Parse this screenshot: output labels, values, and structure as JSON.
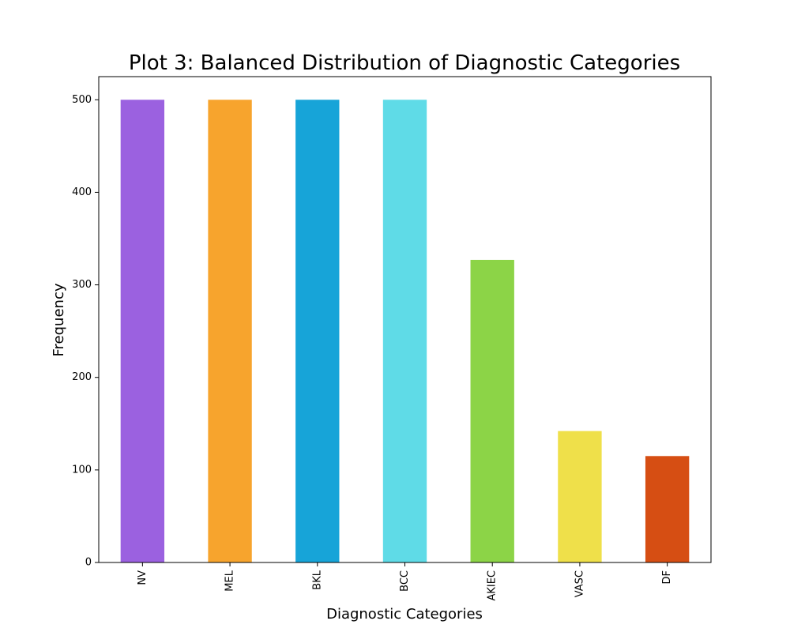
{
  "chart_data": {
    "type": "bar",
    "title": "Plot 3: Balanced Distribution of Diagnostic Categories",
    "xlabel": "Diagnostic Categories",
    "ylabel": "Frequency",
    "categories": [
      "NV",
      "MEL",
      "BKL",
      "BCC",
      "AKIEC",
      "VASC",
      "DF"
    ],
    "values": [
      500,
      500,
      500,
      500,
      327,
      142,
      115
    ],
    "colors": [
      "#9b61e0",
      "#f7a42d",
      "#17a4d8",
      "#5fdbe7",
      "#8cd447",
      "#efe04a",
      "#d64e13"
    ],
    "yticks": [
      0,
      100,
      200,
      300,
      400,
      500
    ],
    "ylim": [
      0,
      525
    ],
    "grid": false,
    "legend": false
  }
}
